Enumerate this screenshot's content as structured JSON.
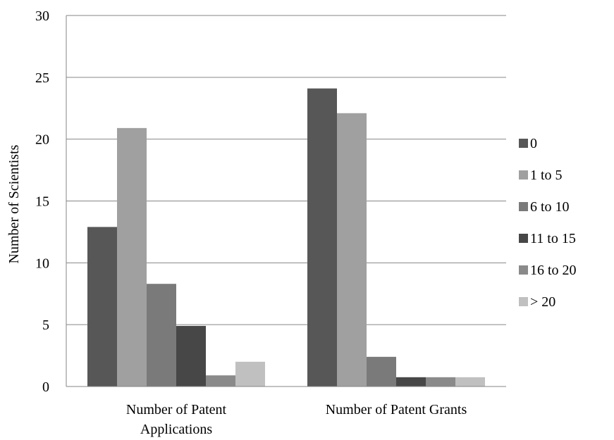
{
  "chart_data": {
    "type": "bar",
    "title": "",
    "xlabel": "",
    "ylabel": "Number of Scientists",
    "ylim": [
      0,
      30
    ],
    "yticks": [
      0,
      5,
      10,
      15,
      20,
      25,
      30
    ],
    "grid": true,
    "legend_position": "right",
    "categories": [
      [
        "Number of Patent",
        "Applications"
      ],
      [
        "Number of Patent Grants"
      ]
    ],
    "series": [
      {
        "name": "0",
        "color": "#575757",
        "values": [
          12.9,
          24.1
        ]
      },
      {
        "name": "1 to 5",
        "color": "#a0a0a0",
        "values": [
          20.9,
          22.1
        ]
      },
      {
        "name": "6 to 10",
        "color": "#7a7a7a",
        "values": [
          8.3,
          2.4
        ]
      },
      {
        "name": "11 to 15",
        "color": "#474747",
        "values": [
          4.9,
          0.75
        ]
      },
      {
        "name": "16 to 20",
        "color": "#8a8a8a",
        "values": [
          0.9,
          0.75
        ]
      },
      {
        "name": "> 20",
        "color": "#c0c0c0",
        "values": [
          2.0,
          0.75
        ]
      }
    ]
  }
}
